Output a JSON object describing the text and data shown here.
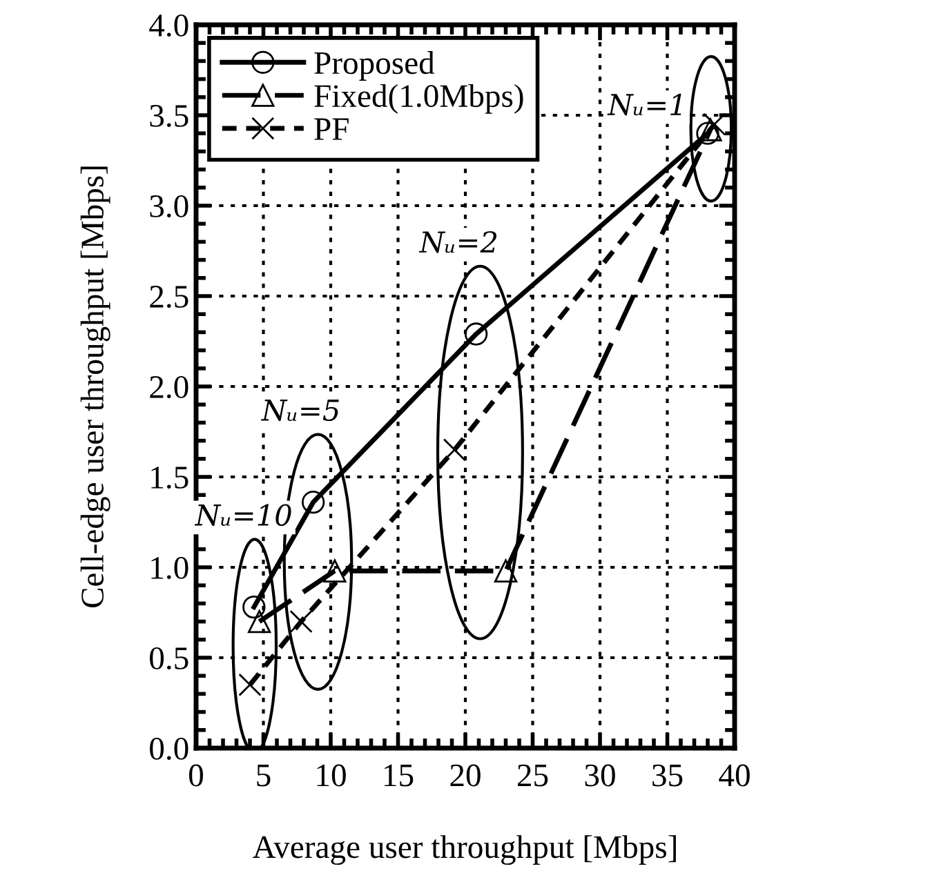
{
  "chart_data": {
    "type": "line",
    "xlabel": "Average user throughput [Mbps]",
    "ylabel": "Cell-edge user throughput [Mbps]",
    "xlim": [
      0,
      40
    ],
    "xticks": [
      0,
      5,
      10,
      15,
      20,
      25,
      30,
      35,
      40
    ],
    "ylim": [
      0,
      4.0
    ],
    "yticks": [
      {
        "value": 0,
        "label": "0.0"
      },
      {
        "value": 0.5,
        "label": "0.5"
      },
      {
        "value": 1,
        "label": "1.0"
      },
      {
        "value": 1.5,
        "label": "1.5"
      },
      {
        "value": 2,
        "label": "2.0"
      },
      {
        "value": 2.5,
        "label": "2.5"
      },
      {
        "value": 3,
        "label": "3.0"
      },
      {
        "value": 3.5,
        "label": "3.5"
      },
      {
        "value": 4,
        "label": "4.0"
      }
    ],
    "grid": true,
    "legend": "top left",
    "series": [
      {
        "name": "Proposed",
        "color": "#000000",
        "marker": "circle",
        "line_style": "solid",
        "x": [
          4.3,
          8.7,
          20.8,
          38.0
        ],
        "values": [
          0.78,
          1.36,
          2.29,
          3.4
        ]
      },
      {
        "name": "Fixed(1.0Mbps)",
        "color": "#000000",
        "marker": "triangle",
        "line_style": "longdash",
        "x": [
          4.7,
          10.3,
          23.0,
          38.2
        ],
        "values": [
          0.7,
          0.98,
          0.98,
          3.42
        ]
      },
      {
        "name": "PF",
        "color": "#000000",
        "marker": "cross",
        "line_style": "dashed",
        "x": [
          4.0,
          7.8,
          19.2,
          38.5
        ],
        "values": [
          0.35,
          0.7,
          1.65,
          3.45
        ]
      }
    ],
    "annotations": [
      "Nᵤ=10",
      "Nᵤ=5",
      "Nᵤ=2",
      "Nᵤ=1"
    ]
  }
}
